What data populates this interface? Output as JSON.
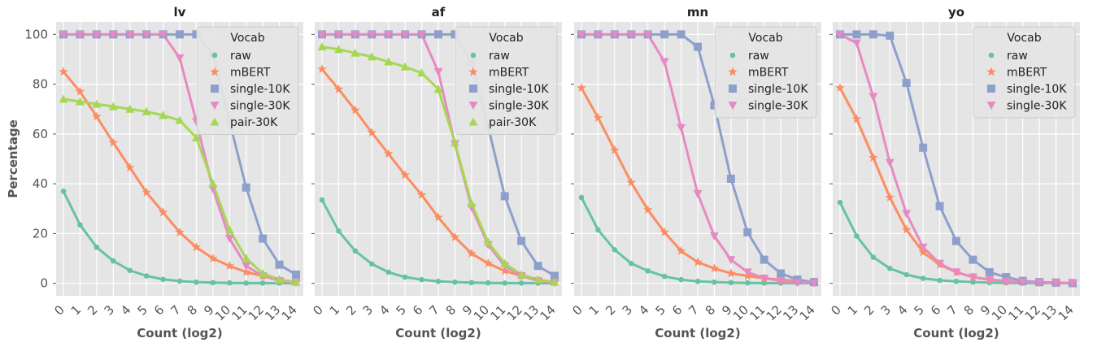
{
  "chart_data": [
    {
      "type": "line",
      "title": "lv",
      "xlabel": "Count (log2)",
      "ylabel": "Percentage",
      "legend_title": "Vocab",
      "legend_position": "top-right",
      "grid": true,
      "ylim": [
        -5,
        105
      ],
      "yticks": [
        0,
        20,
        40,
        60,
        80,
        100
      ],
      "x": [
        0,
        1,
        2,
        3,
        4,
        5,
        6,
        7,
        8,
        9,
        10,
        11,
        12,
        13,
        14
      ],
      "series": [
        {
          "name": "raw",
          "marker": "circle",
          "color": "#66c2a5",
          "values": [
            37,
            23.5,
            14.5,
            9,
            5.2,
            3,
            1.6,
            0.9,
            0.5,
            0.3,
            0.2,
            0.1,
            0.1,
            0.1,
            0
          ]
        },
        {
          "name": "mBERT",
          "marker": "star",
          "color": "#fc8d62",
          "values": [
            85,
            77,
            67,
            56.5,
            46.5,
            36.5,
            28.5,
            20.5,
            14.5,
            10,
            7,
            4.5,
            3,
            1.5,
            0.5
          ]
        },
        {
          "name": "single-10K",
          "marker": "square",
          "color": "#8da0cb",
          "values": [
            100,
            100,
            100,
            100,
            100,
            100,
            100,
            100,
            100,
            92,
            65,
            38.5,
            18,
            7.5,
            3.5
          ]
        },
        {
          "name": "single-30K",
          "marker": "triangle-down",
          "color": "#e78ac3",
          "values": [
            100,
            100,
            100,
            100,
            100,
            100,
            100,
            90.5,
            65,
            38,
            18,
            7,
            3,
            1,
            0.3
          ]
        },
        {
          "name": "pair-30K",
          "marker": "triangle-up",
          "color": "#a6d854",
          "values": [
            74,
            73,
            72,
            71,
            70,
            69,
            67.5,
            65.5,
            58.5,
            40,
            21.5,
            10,
            4,
            1.5,
            0.5
          ]
        }
      ]
    },
    {
      "type": "line",
      "title": "af",
      "xlabel": "Count (log2)",
      "ylabel": "",
      "legend_title": "Vocab",
      "legend_position": "top-right",
      "grid": true,
      "ylim": [
        -5,
        105
      ],
      "yticks": [
        0,
        20,
        40,
        60,
        80,
        100
      ],
      "x": [
        0,
        1,
        2,
        3,
        4,
        5,
        6,
        7,
        8,
        9,
        10,
        11,
        12,
        13,
        14
      ],
      "series": [
        {
          "name": "raw",
          "marker": "circle",
          "color": "#66c2a5",
          "values": [
            33.5,
            21,
            13,
            7.8,
            4.5,
            2.5,
            1.5,
            0.8,
            0.5,
            0.3,
            0.2,
            0.1,
            0.1,
            0.1,
            0
          ]
        },
        {
          "name": "mBERT",
          "marker": "star",
          "color": "#fc8d62",
          "values": [
            86,
            78,
            69.5,
            60.5,
            52,
            43.5,
            35.5,
            26.5,
            18.5,
            12,
            8,
            5,
            3,
            1.5,
            0.5
          ]
        },
        {
          "name": "single-10K",
          "marker": "square",
          "color": "#8da0cb",
          "values": [
            100,
            100,
            100,
            100,
            100,
            100,
            100,
            100,
            100,
            89,
            63,
            35,
            17,
            7,
            3
          ]
        },
        {
          "name": "single-30K",
          "marker": "triangle-down",
          "color": "#e78ac3",
          "values": [
            100,
            100,
            100,
            100,
            100,
            100,
            100,
            85,
            56,
            30.5,
            15.5,
            7,
            3,
            1,
            0.3
          ]
        },
        {
          "name": "pair-30K",
          "marker": "triangle-up",
          "color": "#a6d854",
          "values": [
            95,
            94,
            92.5,
            91,
            89,
            87,
            84.5,
            78,
            56.5,
            32,
            16.5,
            8,
            3.5,
            1.5,
            0.5
          ]
        }
      ]
    },
    {
      "type": "line",
      "title": "mn",
      "xlabel": "Count (log2)",
      "ylabel": "",
      "legend_title": "Vocab",
      "legend_position": "top-right",
      "grid": true,
      "ylim": [
        -5,
        105
      ],
      "yticks": [
        0,
        20,
        40,
        60,
        80,
        100
      ],
      "x": [
        0,
        1,
        2,
        3,
        4,
        5,
        6,
        7,
        8,
        9,
        10,
        11,
        12,
        13,
        14
      ],
      "series": [
        {
          "name": "raw",
          "marker": "circle",
          "color": "#66c2a5",
          "values": [
            34.5,
            21.5,
            13.5,
            8,
            5,
            2.8,
            1.5,
            0.8,
            0.5,
            0.3,
            0.2,
            0.1,
            0.1,
            0.1,
            0
          ]
        },
        {
          "name": "mBERT",
          "marker": "star",
          "color": "#fc8d62",
          "values": [
            78.5,
            66.5,
            53.5,
            40.5,
            29.5,
            20.5,
            13,
            8.5,
            6,
            4,
            3,
            2,
            1.5,
            1,
            0.5
          ]
        },
        {
          "name": "single-10K",
          "marker": "square",
          "color": "#8da0cb",
          "values": [
            100,
            100,
            100,
            100,
            100,
            100,
            100,
            95,
            71.5,
            42,
            20.5,
            9.5,
            4,
            1.5,
            0.5
          ]
        },
        {
          "name": "single-30K",
          "marker": "triangle-down",
          "color": "#e78ac3",
          "values": [
            100,
            100,
            100,
            100,
            100,
            89,
            62.5,
            36,
            19,
            9.5,
            4.5,
            2,
            1,
            0.3,
            0.1
          ]
        }
      ]
    },
    {
      "type": "line",
      "title": "yo",
      "xlabel": "Count (log2)",
      "ylabel": "",
      "legend_title": "Vocab",
      "legend_position": "top-right",
      "grid": true,
      "ylim": [
        -5,
        105
      ],
      "yticks": [
        0,
        20,
        40,
        60,
        80,
        100
      ],
      "x": [
        0,
        1,
        2,
        3,
        4,
        5,
        6,
        7,
        8,
        9,
        10,
        11,
        12,
        13,
        14
      ],
      "series": [
        {
          "name": "raw",
          "marker": "circle",
          "color": "#66c2a5",
          "values": [
            32.5,
            19,
            10.5,
            6,
            3.5,
            2,
            1.2,
            0.8,
            0.5,
            0.3,
            0.2,
            0.1,
            0.1,
            0.1,
            0
          ]
        },
        {
          "name": "mBERT",
          "marker": "star",
          "color": "#fc8d62",
          "values": [
            78.5,
            66,
            50.5,
            34.5,
            21.5,
            12.5,
            7.5,
            4.5,
            2.5,
            1.5,
            1,
            0.5,
            0.3,
            0.1,
            0
          ]
        },
        {
          "name": "single-10K",
          "marker": "square",
          "color": "#8da0cb",
          "values": [
            100,
            100,
            100,
            99.5,
            80.5,
            54.5,
            31,
            17,
            9.5,
            4.5,
            2.5,
            1,
            0.5,
            0.3,
            0.1
          ]
        },
        {
          "name": "single-30K",
          "marker": "triangle-down",
          "color": "#e78ac3",
          "values": [
            100,
            96.5,
            75,
            48.5,
            28,
            14.5,
            8,
            4.5,
            2.5,
            1.5,
            0.8,
            0.5,
            0.3,
            0.1,
            0
          ]
        }
      ]
    }
  ]
}
